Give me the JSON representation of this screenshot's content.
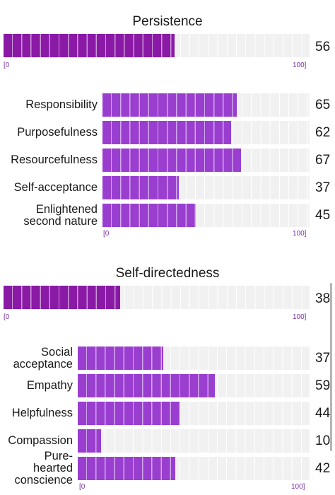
{
  "sections": [
    {
      "title": "Persistence",
      "main": {
        "score": 56,
        "tick_min": "[0",
        "tick_max": "100]"
      },
      "subs": [
        {
          "label": "Responsibility",
          "score": 65
        },
        {
          "label": "Purposefulness",
          "score": 62
        },
        {
          "label": "Resourcefulness",
          "score": 67
        },
        {
          "label": "Self-acceptance",
          "score": 37
        },
        {
          "label": "Enlightened\nsecond nature",
          "score": 45
        }
      ],
      "sub_tick_min": "[0",
      "sub_tick_max": "100]"
    },
    {
      "title": "Self-directedness",
      "main": {
        "score": 38,
        "tick_min": "[0",
        "tick_max": "100]"
      },
      "subs": [
        {
          "label": "Social\nacceptance",
          "score": 37
        },
        {
          "label": "Empathy",
          "score": 59
        },
        {
          "label": "Helpfulness",
          "score": 44
        },
        {
          "label": "Compassion",
          "score": 10
        },
        {
          "label": "Pure-\nhearted\nconscience",
          "score": 42
        }
      ],
      "sub_tick_min": "[0",
      "sub_tick_max": "100]"
    }
  ],
  "colors": {
    "main_fill": "#8a1aa6",
    "sub_fill": "#9a3ed0",
    "track": "#f1f1f1",
    "tick": "#7a2fa0"
  }
}
